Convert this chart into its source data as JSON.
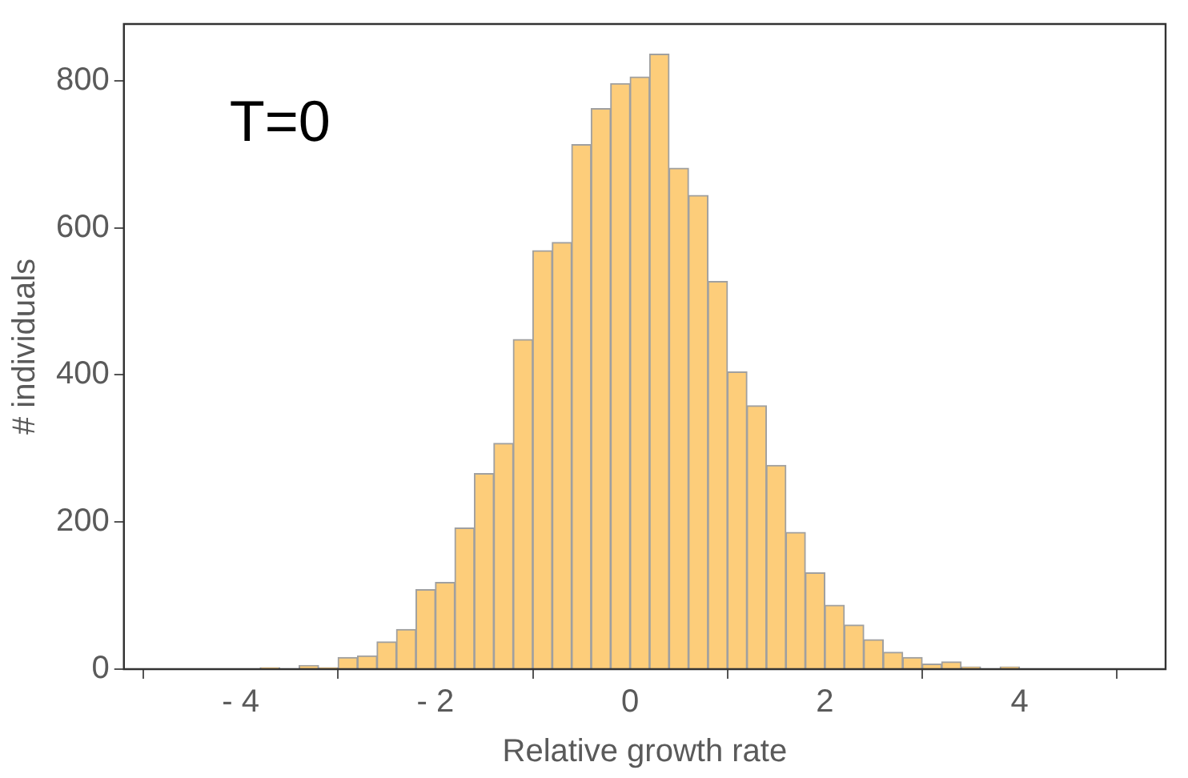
{
  "chart_data": {
    "type": "histogram",
    "bins": [
      -3.8,
      -3.6,
      -3.4,
      -3.2,
      -3.0,
      -2.8,
      -2.6,
      -2.4,
      -2.2,
      -2.0,
      -1.8,
      -1.6,
      -1.4,
      -1.2,
      -1.0,
      -0.8,
      -0.6,
      -0.4,
      -0.2,
      0,
      0.2,
      0.4,
      0.6,
      0.8,
      1.0,
      1.2,
      1.4,
      1.6,
      1.8,
      2.0,
      2.2,
      2.4,
      2.6,
      2.8,
      3.0,
      3.2,
      3.4,
      3.6,
      3.8,
      4.0
    ],
    "values": [
      2,
      0,
      5,
      2,
      16,
      18,
      37,
      54,
      108,
      118,
      192,
      266,
      307,
      448,
      569,
      580,
      713,
      762,
      796,
      805,
      836,
      681,
      644,
      527,
      404,
      358,
      277,
      186,
      131,
      87,
      60,
      40,
      23,
      16,
      7,
      10,
      3,
      0,
      3
    ],
    "color": "#fdcd7a",
    "xlabel": "Relative growth rate",
    "ylabel": "# individuals",
    "xlim": [
      -5.2,
      5.5
    ],
    "ylim": [
      0,
      877
    ],
    "xticks": [
      {
        "value": -4,
        "label": "- 4"
      },
      {
        "value": -2,
        "label": "- 2"
      },
      0,
      2,
      4
    ],
    "yticks": [
      0,
      200,
      400,
      600,
      800
    ],
    "annotations": [
      "T=0"
    ],
    "grid": false
  }
}
